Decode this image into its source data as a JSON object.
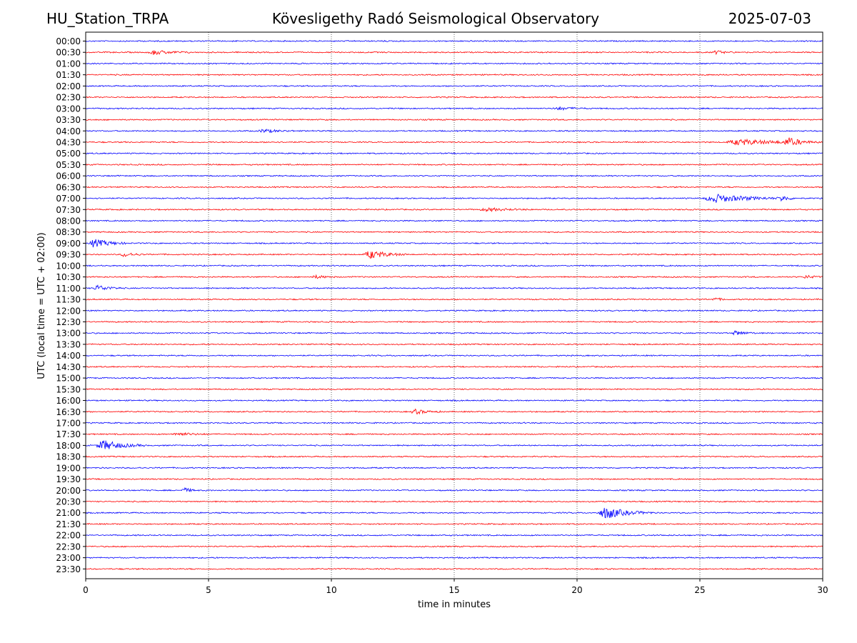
{
  "header": {
    "station": "HU_Station_TRPA",
    "title": "Kövesligethy Radó Seismological Observatory",
    "date": "2025-07-03"
  },
  "chart_data": {
    "type": "line",
    "title": "Kövesligethy Radó Seismological Observatory",
    "xlabel": "time in minutes",
    "ylabel": "UTC (local time = UTC + 02:00)",
    "xlim": [
      0,
      30
    ],
    "xticks": [
      "0",
      "5",
      "10",
      "15",
      "20",
      "25",
      "30"
    ],
    "grid": "vertical dotted lines at 5-minute ticks",
    "colors": {
      "even_rows": "#0000ff",
      "odd_rows": "#ff0000"
    },
    "rows": [
      "00:00",
      "00:30",
      "01:00",
      "01:30",
      "02:00",
      "02:30",
      "03:00",
      "03:30",
      "04:00",
      "04:30",
      "05:00",
      "05:30",
      "06:00",
      "06:30",
      "07:00",
      "07:30",
      "08:00",
      "08:30",
      "09:00",
      "09:30",
      "10:00",
      "10:30",
      "11:00",
      "11:30",
      "12:00",
      "12:30",
      "13:00",
      "13:30",
      "14:00",
      "14:30",
      "15:00",
      "15:30",
      "16:00",
      "16:30",
      "17:00",
      "17:30",
      "18:00",
      "18:30",
      "19:00",
      "19:30",
      "20:00",
      "20:30",
      "21:00",
      "21:30",
      "22:00",
      "22:30",
      "23:00",
      "23:30"
    ],
    "events": [
      {
        "row": "00:30",
        "minute": 2.5,
        "duration": 1.8,
        "amplitude": 0.45
      },
      {
        "row": "00:30",
        "minute": 25.5,
        "duration": 1.0,
        "amplitude": 0.3
      },
      {
        "row": "03:00",
        "minute": 19.0,
        "duration": 1.5,
        "amplitude": 0.3
      },
      {
        "row": "04:00",
        "minute": 7.0,
        "duration": 1.5,
        "amplitude": 0.35
      },
      {
        "row": "04:30",
        "minute": 26.0,
        "duration": 4.0,
        "amplitude": 0.55
      },
      {
        "row": "04:30",
        "minute": 28.4,
        "duration": 1.2,
        "amplitude": 0.8
      },
      {
        "row": "07:00",
        "minute": 25.1,
        "duration": 3.5,
        "amplitude": 0.8
      },
      {
        "row": "07:00",
        "minute": 28.2,
        "duration": 0.8,
        "amplitude": 0.5
      },
      {
        "row": "07:30",
        "minute": 16.0,
        "duration": 2.2,
        "amplitude": 0.3
      },
      {
        "row": "09:00",
        "minute": 0.1,
        "duration": 1.6,
        "amplitude": 0.8
      },
      {
        "row": "09:30",
        "minute": 1.4,
        "duration": 1.0,
        "amplitude": 0.4
      },
      {
        "row": "09:30",
        "minute": 11.3,
        "duration": 1.8,
        "amplitude": 0.8
      },
      {
        "row": "10:30",
        "minute": 9.2,
        "duration": 1.0,
        "amplitude": 0.3
      },
      {
        "row": "10:30",
        "minute": 29.2,
        "duration": 0.8,
        "amplitude": 0.35
      },
      {
        "row": "11:00",
        "minute": 0.3,
        "duration": 1.2,
        "amplitude": 0.6
      },
      {
        "row": "11:30",
        "minute": 25.5,
        "duration": 0.6,
        "amplitude": 0.35
      },
      {
        "row": "13:00",
        "minute": 26.3,
        "duration": 1.0,
        "amplitude": 0.45
      },
      {
        "row": "16:30",
        "minute": 13.2,
        "duration": 1.3,
        "amplitude": 0.45
      },
      {
        "row": "17:30",
        "minute": 3.5,
        "duration": 1.5,
        "amplitude": 0.35
      },
      {
        "row": "18:00",
        "minute": 0.4,
        "duration": 2.0,
        "amplitude": 1.0
      },
      {
        "row": "20:00",
        "minute": 3.9,
        "duration": 0.7,
        "amplitude": 0.5
      },
      {
        "row": "21:00",
        "minute": 20.8,
        "duration": 2.3,
        "amplitude": 1.1
      },
      {
        "row": "21:00",
        "minute": 21.3,
        "duration": 0.3,
        "amplitude": 0.3
      }
    ]
  }
}
